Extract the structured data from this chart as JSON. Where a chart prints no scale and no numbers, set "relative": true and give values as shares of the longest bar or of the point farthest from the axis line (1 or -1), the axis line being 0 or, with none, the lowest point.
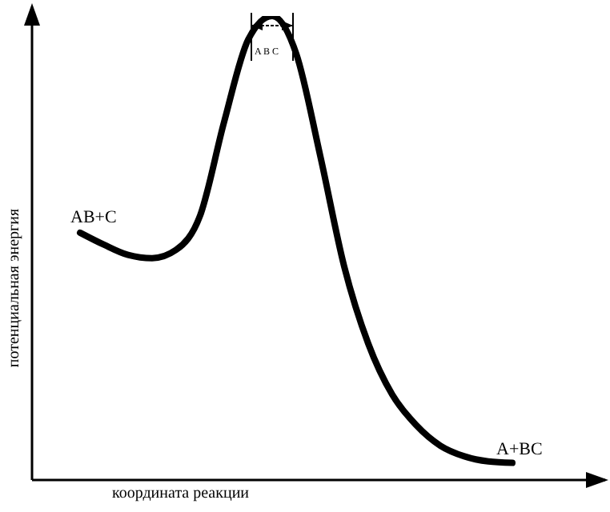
{
  "chart_data": {
    "type": "line",
    "relative": true,
    "marker": "none",
    "xlabel": "координата реакции",
    "ylabel": "потенциальная энергия",
    "annotations": [
      "AB+C",
      "A+BC",
      "A B C"
    ],
    "categories": [
      null,
      null,
      null,
      null,
      null,
      null,
      null,
      null,
      null,
      null,
      null,
      null,
      null,
      null,
      null,
      null,
      null,
      null,
      null
    ],
    "series": [
      {
        "color": "#000000",
        "values": [
          0.533,
          0.507,
          0.485,
          0.478,
          0.496,
          0.57,
          0.772,
          0.949,
          1,
          0.919,
          0.699,
          0.46,
          0.294,
          0.184,
          0.118,
          0.074,
          0.051,
          0.04,
          0.037
        ]
      }
    ]
  }
}
